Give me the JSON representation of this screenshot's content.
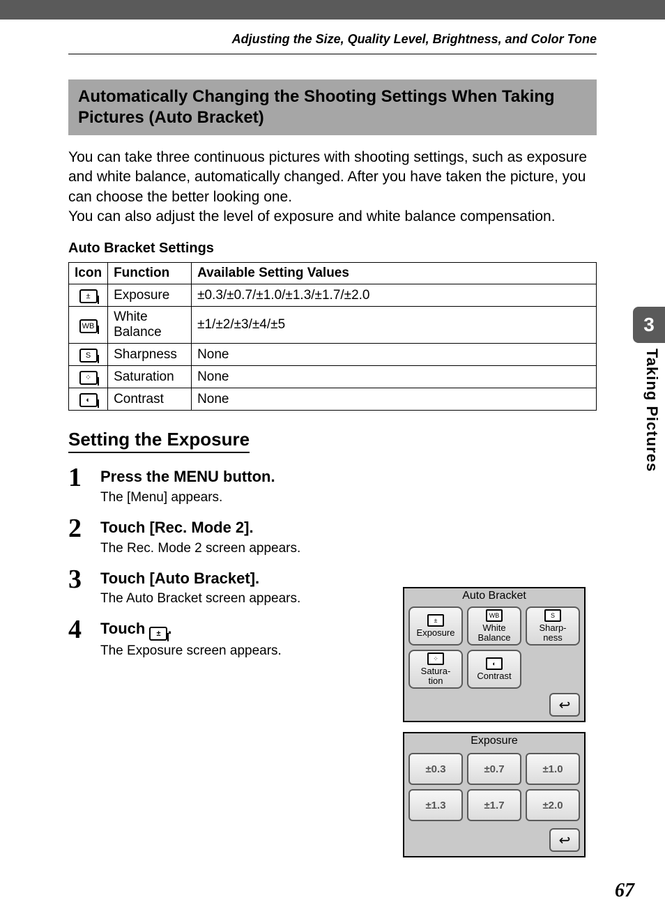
{
  "header": {
    "chapter": "Adjusting the Size, Quality Level, Brightness, and Color Tone"
  },
  "section": {
    "title": "Automatically Changing the Shooting Settings When Taking Pictures (Auto Bracket)",
    "body": "You can take three continuous pictures with shooting settings, such as exposure and white balance, automatically changed. After you have taken the picture, you can choose the better looking one.\nYou can also adjust the level of exposure and white balance compensation.",
    "table_title": "Auto Bracket Settings"
  },
  "table": {
    "columns": [
      "Icon",
      "Function",
      "Available Setting Values"
    ],
    "rows": [
      {
        "icon": "exposure-icon",
        "icon_glyph": "±",
        "function": "Exposure",
        "values": "±0.3/±0.7/±1.0/±1.3/±1.7/±2.0"
      },
      {
        "icon": "wb-icon",
        "icon_glyph": "WB",
        "function": "White Balance",
        "values": "±1/±2/±3/±4/±5"
      },
      {
        "icon": "sharpness-icon",
        "icon_glyph": "S",
        "function": "Sharpness",
        "values": "None"
      },
      {
        "icon": "saturation-icon",
        "icon_glyph": "⁘",
        "function": "Saturation",
        "values": "None"
      },
      {
        "icon": "contrast-icon",
        "icon_glyph": "◐",
        "function": "Contrast",
        "values": "None"
      }
    ]
  },
  "procedure": {
    "heading": "Setting the Exposure",
    "steps": [
      {
        "num": "1",
        "title": "Press the MENU button.",
        "desc": "The [Menu] appears."
      },
      {
        "num": "2",
        "title": "Touch [Rec. Mode 2].",
        "desc": "The Rec. Mode 2 screen appears."
      },
      {
        "num": "3",
        "title": "Touch [Auto Bracket].",
        "desc": "The Auto Bracket screen appears."
      },
      {
        "num": "4",
        "title_prefix": "Touch ",
        "title_suffix": ".",
        "icon_glyph": "±",
        "desc": "The Exposure screen appears."
      }
    ]
  },
  "sidetab": {
    "number": "3",
    "label": "Taking Pictures"
  },
  "page_number": "67",
  "lcd1": {
    "title": "Auto Bracket",
    "buttons": [
      {
        "icon_glyph": "±",
        "label": "Exposure"
      },
      {
        "icon_glyph": "WB",
        "label": "White\nBalance"
      },
      {
        "icon_glyph": "S",
        "label": "Sharp-\nness"
      },
      {
        "icon_glyph": "⁘",
        "label": "Satura-\ntion"
      },
      {
        "icon_glyph": "◐",
        "label": "Contrast"
      }
    ],
    "back_glyph": "↩"
  },
  "lcd2": {
    "title": "Exposure",
    "values": [
      "±0.3",
      "±0.7",
      "±1.0",
      "±1.3",
      "±1.7",
      "±2.0"
    ],
    "back_glyph": "↩"
  },
  "colors": {
    "topbar": "#5a5a5a",
    "section_bg": "#a6a6a6",
    "lcd_bg": "#c9c9c9"
  }
}
